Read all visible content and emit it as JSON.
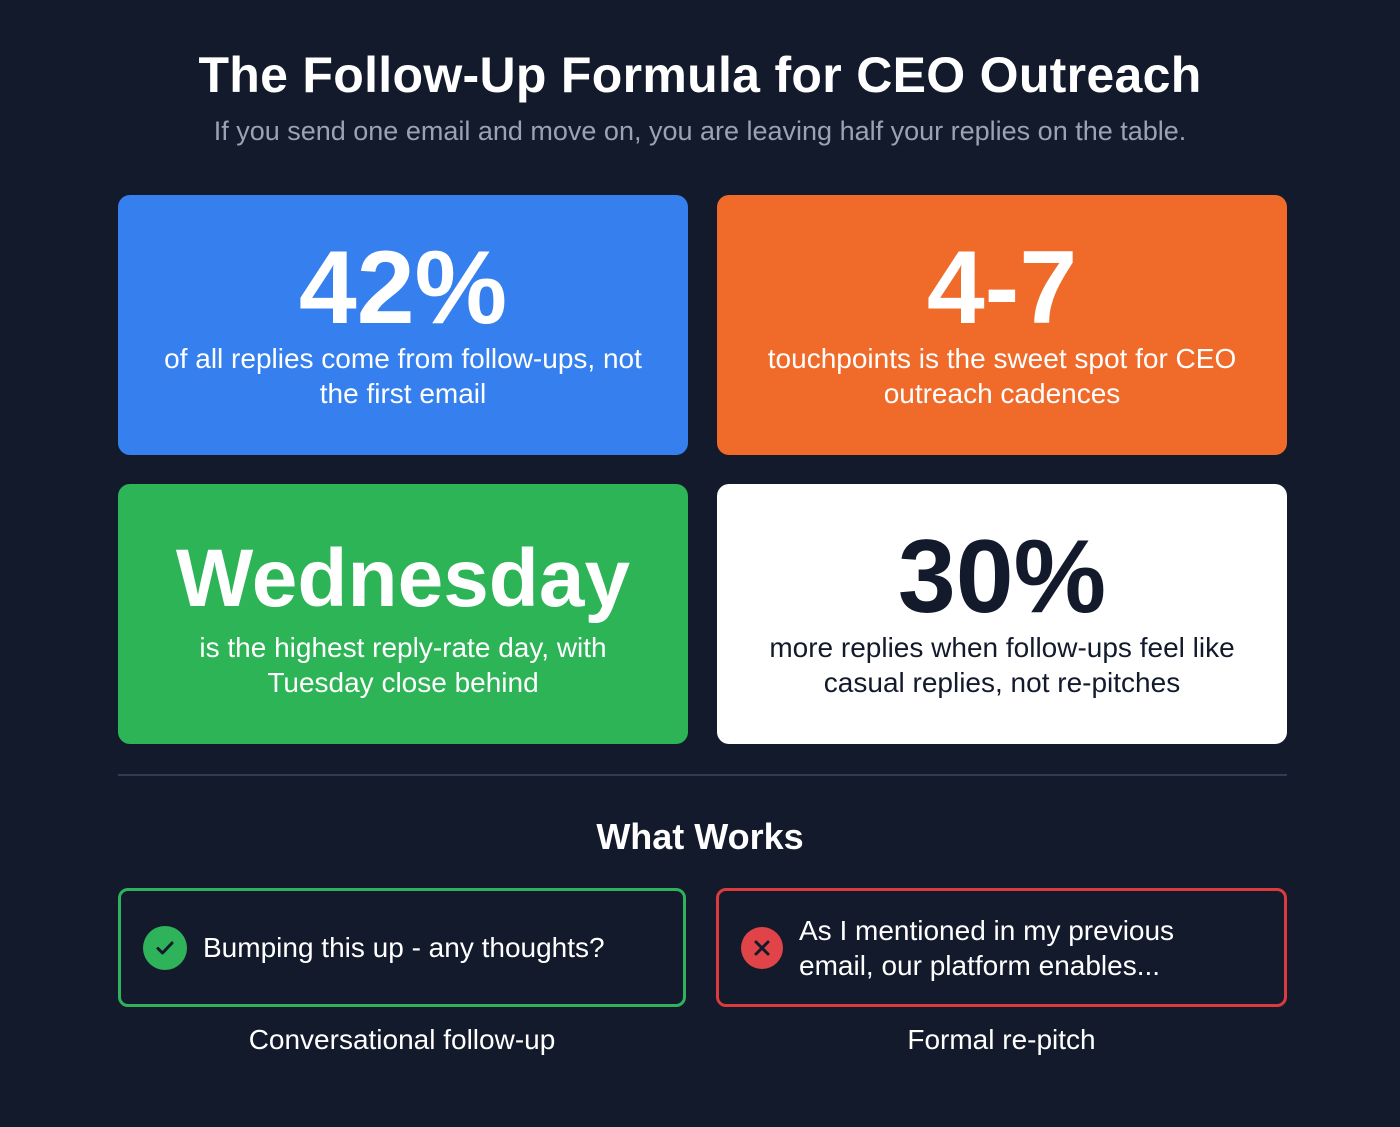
{
  "header": {
    "title": "The Follow-Up Formula for CEO Outreach",
    "subtitle": "If you send one email and move on, you are leaving half your replies on the table."
  },
  "stats": [
    {
      "value": "42%",
      "description": "of all replies come from follow-ups, not the first email",
      "color": "#3580ee"
    },
    {
      "value": "4-7",
      "description": "touchpoints is the sweet spot for CEO outreach cadences",
      "color": "#f06a2a"
    },
    {
      "value": "Wednesday",
      "description": "is the highest reply-rate day, with Tuesday close behind",
      "color": "#2db457"
    },
    {
      "value": "30%",
      "description": "more replies when follow-ups feel like casual replies, not re-pitches",
      "color": "#ffffff"
    }
  ],
  "what_works": {
    "heading": "What Works",
    "good": {
      "icon": "check-circle-icon",
      "text": "Bumping this up - any thoughts?",
      "caption": "Conversational follow-up",
      "color": "#2fb35a"
    },
    "bad": {
      "icon": "x-circle-icon",
      "text": "As I mentioned in my previous email, our platform enables...",
      "caption": "Formal re-pitch",
      "color": "#dc3b3e"
    }
  }
}
